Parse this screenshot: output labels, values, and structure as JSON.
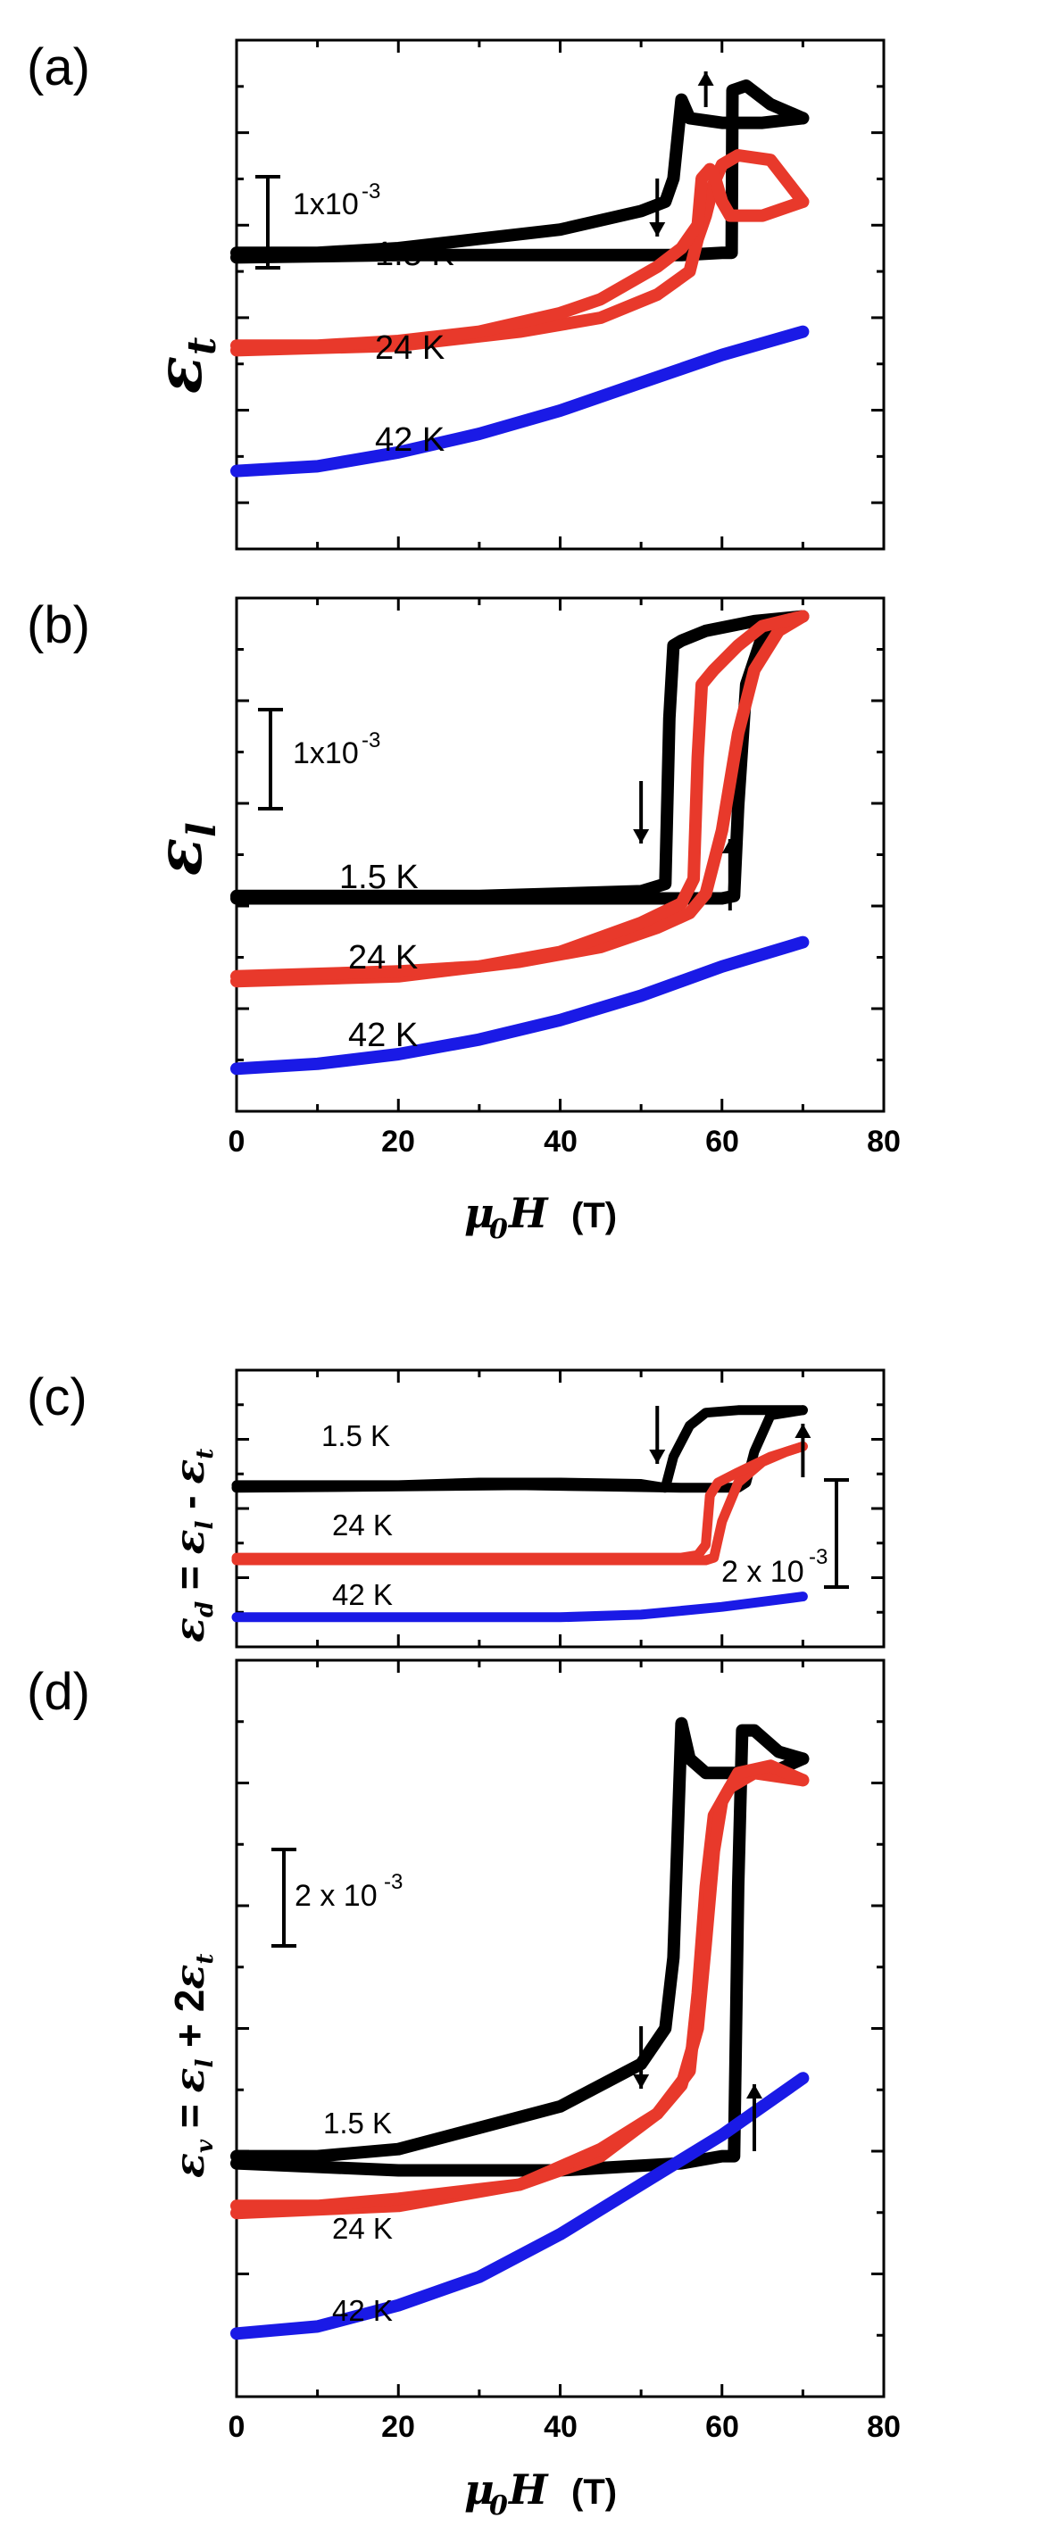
{
  "figure": {
    "x_axis": {
      "symbol": "μ",
      "subscript": "0",
      "variable": "H",
      "unit": "(T)",
      "ticks": [
        "0",
        "20",
        "40",
        "60",
        "80"
      ]
    }
  },
  "chart_data": [
    {
      "panel": "(a)",
      "type": "line",
      "ylabel": {
        "symbol": "ε",
        "sub": "t"
      },
      "xlim": [
        0,
        80
      ],
      "ylim": [
        0,
        100
      ],
      "scale_bar": {
        "text": "1x10",
        "exp": "-3",
        "value": 0.001
      },
      "arrows": [
        {
          "field_T": 52,
          "direction": "down"
        },
        {
          "field_T": 58,
          "direction": "up"
        }
      ],
      "series": [
        {
          "name": "1.5 K",
          "color": "#000000",
          "up": [
            [
              0,
              58
            ],
            [
              20,
              58.5
            ],
            [
              40,
              58.5
            ],
            [
              55,
              58.5
            ],
            [
              60,
              59
            ],
            [
              61.2,
              59
            ],
            [
              61.3,
              94
            ],
            [
              63,
              95
            ],
            [
              66,
              91
            ],
            [
              70,
              88
            ]
          ],
          "down": [
            [
              70,
              88
            ],
            [
              65,
              87
            ],
            [
              60,
              87
            ],
            [
              56,
              88
            ],
            [
              55,
              92
            ],
            [
              54,
              75
            ],
            [
              53,
              70
            ],
            [
              50,
              68
            ],
            [
              40,
              64
            ],
            [
              30,
              62
            ],
            [
              20,
              60
            ],
            [
              10,
              59
            ],
            [
              0,
              59
            ]
          ]
        },
        {
          "name": "24 K",
          "color": "#e8392b",
          "up": [
            [
              0,
              38
            ],
            [
              20,
              39
            ],
            [
              35,
              42
            ],
            [
              45,
              45
            ],
            [
              52,
              50
            ],
            [
              56,
              55
            ],
            [
              57,
              62
            ],
            [
              58,
              67
            ],
            [
              59,
              74
            ],
            [
              60,
              78
            ],
            [
              62,
              80
            ],
            [
              66,
              79
            ],
            [
              70,
              70
            ]
          ],
          "down": [
            [
              70,
              70
            ],
            [
              65,
              67
            ],
            [
              61,
              67
            ],
            [
              60,
              70
            ],
            [
              59,
              76
            ],
            [
              58.5,
              77
            ],
            [
              57.5,
              75
            ],
            [
              57,
              65
            ],
            [
              55,
              60
            ],
            [
              52,
              56
            ],
            [
              45,
              49
            ],
            [
              40,
              46
            ],
            [
              30,
              42
            ],
            [
              20,
              40
            ],
            [
              10,
              39
            ],
            [
              0,
              39
            ]
          ]
        },
        {
          "name": "42 K",
          "color": "#1a1ae6",
          "up": [
            [
              0,
              12
            ],
            [
              10,
              13
            ],
            [
              20,
              16
            ],
            [
              30,
              20
            ],
            [
              40,
              25
            ],
            [
              50,
              31
            ],
            [
              60,
              37
            ],
            [
              70,
              42
            ]
          ]
        }
      ]
    },
    {
      "panel": "(b)",
      "type": "line",
      "ylabel": {
        "symbol": "ε",
        "sub": "l"
      },
      "xlim": [
        0,
        80
      ],
      "ylim": [
        0,
        100
      ],
      "scale_bar": {
        "text": "1x10",
        "exp": "-3",
        "value": 0.001
      },
      "arrows": [
        {
          "field_T": 50,
          "direction": "down"
        },
        {
          "field_T": 61,
          "direction": "up"
        }
      ],
      "series": [
        {
          "name": "1.5 K",
          "color": "#000000",
          "up": [
            [
              0,
              41
            ],
            [
              20,
              41
            ],
            [
              40,
              41
            ],
            [
              55,
              41
            ],
            [
              60,
              41
            ],
            [
              61.5,
              41.5
            ],
            [
              62,
              60
            ],
            [
              63,
              85
            ],
            [
              65,
              95
            ],
            [
              70,
              99
            ]
          ],
          "down": [
            [
              70,
              99
            ],
            [
              64,
              98
            ],
            [
              58,
              96
            ],
            [
              55,
              94
            ],
            [
              54,
              93
            ],
            [
              53.5,
              78
            ],
            [
              53,
              44
            ],
            [
              50,
              42.5
            ],
            [
              40,
              42
            ],
            [
              30,
              41.5
            ],
            [
              20,
              41.5
            ],
            [
              0,
              41.5
            ]
          ]
        },
        {
          "name": "24 K",
          "color": "#e8392b",
          "up": [
            [
              0,
              24
            ],
            [
              20,
              25
            ],
            [
              35,
              28
            ],
            [
              45,
              31
            ],
            [
              52,
              35
            ],
            [
              56,
              38
            ],
            [
              58,
              42
            ],
            [
              60,
              55
            ],
            [
              62,
              75
            ],
            [
              64,
              88
            ],
            [
              67,
              96
            ],
            [
              70,
              99
            ]
          ],
          "down": [
            [
              70,
              99
            ],
            [
              65,
              97
            ],
            [
              62,
              93
            ],
            [
              59,
              88
            ],
            [
              57.5,
              85
            ],
            [
              57,
              70
            ],
            [
              56.5,
              45
            ],
            [
              55,
              40
            ],
            [
              50,
              36
            ],
            [
              40,
              30
            ],
            [
              30,
              27
            ],
            [
              20,
              26
            ],
            [
              0,
              25
            ]
          ]
        },
        {
          "name": "42 K",
          "color": "#1a1ae6",
          "up": [
            [
              0,
              6
            ],
            [
              10,
              7
            ],
            [
              20,
              9
            ],
            [
              30,
              12
            ],
            [
              40,
              16
            ],
            [
              50,
              21
            ],
            [
              60,
              27
            ],
            [
              70,
              32
            ]
          ]
        }
      ]
    },
    {
      "panel": "(c)",
      "type": "line",
      "ylabel": {
        "lhs": "ε",
        "lhs_sub": "d",
        "eq": " = ",
        "a": "ε",
        "a_sub": "l",
        "op": " - ",
        "b": "ε",
        "b_sub": "t"
      },
      "xlim": [
        0,
        80
      ],
      "ylim": [
        0,
        100
      ],
      "scale_bar": {
        "text": "2 x 10",
        "exp": "-3",
        "value": 0.002
      },
      "arrows": [
        {
          "field_T": 52,
          "direction": "down"
        },
        {
          "field_T": 70,
          "direction": "up"
        }
      ],
      "series": [
        {
          "name": "1.5 K",
          "color": "#000000",
          "up": [
            [
              0,
              58
            ],
            [
              20,
              58.5
            ],
            [
              35,
              59
            ],
            [
              45,
              58.5
            ],
            [
              55,
              58
            ],
            [
              62,
              58
            ],
            [
              63,
              60
            ],
            [
              64,
              72
            ],
            [
              66,
              86
            ],
            [
              70,
              88
            ]
          ],
          "down": [
            [
              70,
              88
            ],
            [
              66,
              88
            ],
            [
              62,
              88
            ],
            [
              58,
              87
            ],
            [
              56,
              82
            ],
            [
              54,
              70
            ],
            [
              53,
              58
            ],
            [
              50,
              59.5
            ],
            [
              40,
              60
            ],
            [
              30,
              60
            ],
            [
              20,
              59
            ],
            [
              10,
              59
            ],
            [
              0,
              59
            ]
          ]
        },
        {
          "name": "24 K",
          "color": "#e8392b",
          "up": [
            [
              0,
              30
            ],
            [
              20,
              30
            ],
            [
              40,
              30
            ],
            [
              55,
              30
            ],
            [
              58,
              30
            ],
            [
              59,
              31
            ],
            [
              60,
              45
            ],
            [
              62,
              60
            ],
            [
              65,
              68
            ],
            [
              68,
              72
            ],
            [
              70,
              74
            ]
          ],
          "down": [
            [
              70,
              74
            ],
            [
              66,
              70
            ],
            [
              62,
              64
            ],
            [
              59.5,
              60
            ],
            [
              58.5,
              55
            ],
            [
              58,
              36
            ],
            [
              57,
              32
            ],
            [
              55,
              31
            ],
            [
              40,
              31
            ],
            [
              20,
              31
            ],
            [
              0,
              31
            ]
          ]
        },
        {
          "name": "42 K",
          "color": "#1a1ae6",
          "up": [
            [
              0,
              8
            ],
            [
              20,
              8
            ],
            [
              40,
              8
            ],
            [
              50,
              9
            ],
            [
              60,
              12
            ],
            [
              70,
              16
            ]
          ]
        }
      ]
    },
    {
      "panel": "(d)",
      "type": "line",
      "ylabel": {
        "lhs": "ε",
        "lhs_sub": "v",
        "eq": " = ",
        "a": "ε",
        "a_sub": "l",
        "op": " + 2",
        "b": "ε",
        "b_sub": "t"
      },
      "xlim": [
        0,
        80
      ],
      "ylim": [
        0,
        100
      ],
      "scale_bar": {
        "text": "2 x 10",
        "exp": "-3",
        "value": 0.002
      },
      "arrows": [
        {
          "field_T": 50,
          "direction": "down"
        },
        {
          "field_T": 64,
          "direction": "up"
        }
      ],
      "series": [
        {
          "name": "1.5 K",
          "color": "#000000",
          "up": [
            [
              0,
              31
            ],
            [
              20,
              30
            ],
            [
              40,
              30
            ],
            [
              55,
              31
            ],
            [
              60,
              32
            ],
            [
              61.5,
              32
            ],
            [
              62,
              70
            ],
            [
              62.5,
              92
            ],
            [
              64,
              92
            ],
            [
              67,
              89
            ],
            [
              70,
              88
            ]
          ],
          "down": [
            [
              70,
              88
            ],
            [
              66,
              86
            ],
            [
              62,
              86
            ],
            [
              58,
              86
            ],
            [
              56,
              88
            ],
            [
              55,
              93
            ],
            [
              54,
              60
            ],
            [
              53,
              50
            ],
            [
              50,
              45
            ],
            [
              40,
              39
            ],
            [
              30,
              36
            ],
            [
              20,
              33
            ],
            [
              10,
              32
            ],
            [
              0,
              32
            ]
          ]
        },
        {
          "name": "24 K",
          "color": "#e8392b",
          "up": [
            [
              0,
              24
            ],
            [
              20,
              25
            ],
            [
              35,
              28
            ],
            [
              45,
              32
            ],
            [
              52,
              38
            ],
            [
              56,
              44
            ],
            [
              57,
              55
            ],
            [
              58,
              70
            ],
            [
              59,
              80
            ],
            [
              61,
              84
            ],
            [
              64,
              86
            ],
            [
              70,
              85
            ]
          ],
          "down": [
            [
              70,
              85
            ],
            [
              66,
              87
            ],
            [
              62,
              86
            ],
            [
              60,
              82
            ],
            [
              59,
              75
            ],
            [
              58,
              62
            ],
            [
              57,
              50
            ],
            [
              55,
              42
            ],
            [
              52,
              38
            ],
            [
              45,
              33
            ],
            [
              35,
              28
            ],
            [
              20,
              26
            ],
            [
              10,
              25
            ],
            [
              0,
              25
            ]
          ]
        },
        {
          "name": "42 K",
          "color": "#1a1ae6",
          "up": [
            [
              0,
              7
            ],
            [
              10,
              8
            ],
            [
              20,
              11
            ],
            [
              30,
              15
            ],
            [
              40,
              21
            ],
            [
              50,
              28
            ],
            [
              60,
              35
            ],
            [
              70,
              43
            ]
          ]
        }
      ]
    }
  ]
}
